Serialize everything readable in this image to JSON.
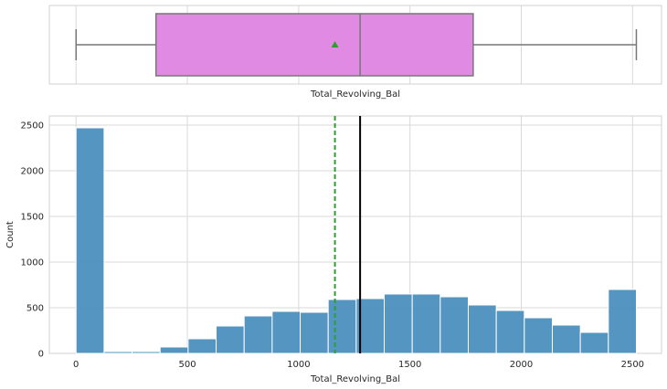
{
  "chart_data": [
    {
      "type": "box",
      "xlabel": "Total_Revolving_Bal",
      "xlim": [
        -120,
        2630
      ],
      "xticks": [
        0,
        500,
        1000,
        1500,
        2000,
        2500
      ],
      "stats": {
        "min": 0,
        "q1": 359,
        "median": 1276,
        "q3": 1784,
        "max": 2517,
        "mean": 1163
      },
      "box_color": "#e08ae4",
      "mean_marker_color": "#2ca02c",
      "line_color": "#777777"
    },
    {
      "type": "bar",
      "xlabel": "Total_Revolving_Bal",
      "ylabel": "Count",
      "xlim": [
        -120,
        2630
      ],
      "ylim": [
        0,
        2600
      ],
      "xticks": [
        0,
        500,
        1000,
        1500,
        2000,
        2500
      ],
      "yticks": [
        0,
        500,
        1000,
        1500,
        2000,
        2500
      ],
      "bin_edges": [
        0,
        125.85,
        251.7,
        377.55,
        503.4,
        629.25,
        755.1,
        880.95,
        1006.8,
        1132.65,
        1258.5,
        1384.35,
        1510.2,
        1636.05,
        1761.9,
        1887.75,
        2013.6,
        2139.45,
        2265.3,
        2391.15,
        2517
      ],
      "values": [
        2470,
        20,
        20,
        70,
        160,
        300,
        410,
        460,
        450,
        590,
        600,
        650,
        650,
        620,
        530,
        470,
        390,
        310,
        230,
        700
      ],
      "bar_color": "#4c8fbf",
      "mean": 1163,
      "mean_line_color": "#2ca02c",
      "median": 1276,
      "median_line_color": "#000000"
    }
  ]
}
